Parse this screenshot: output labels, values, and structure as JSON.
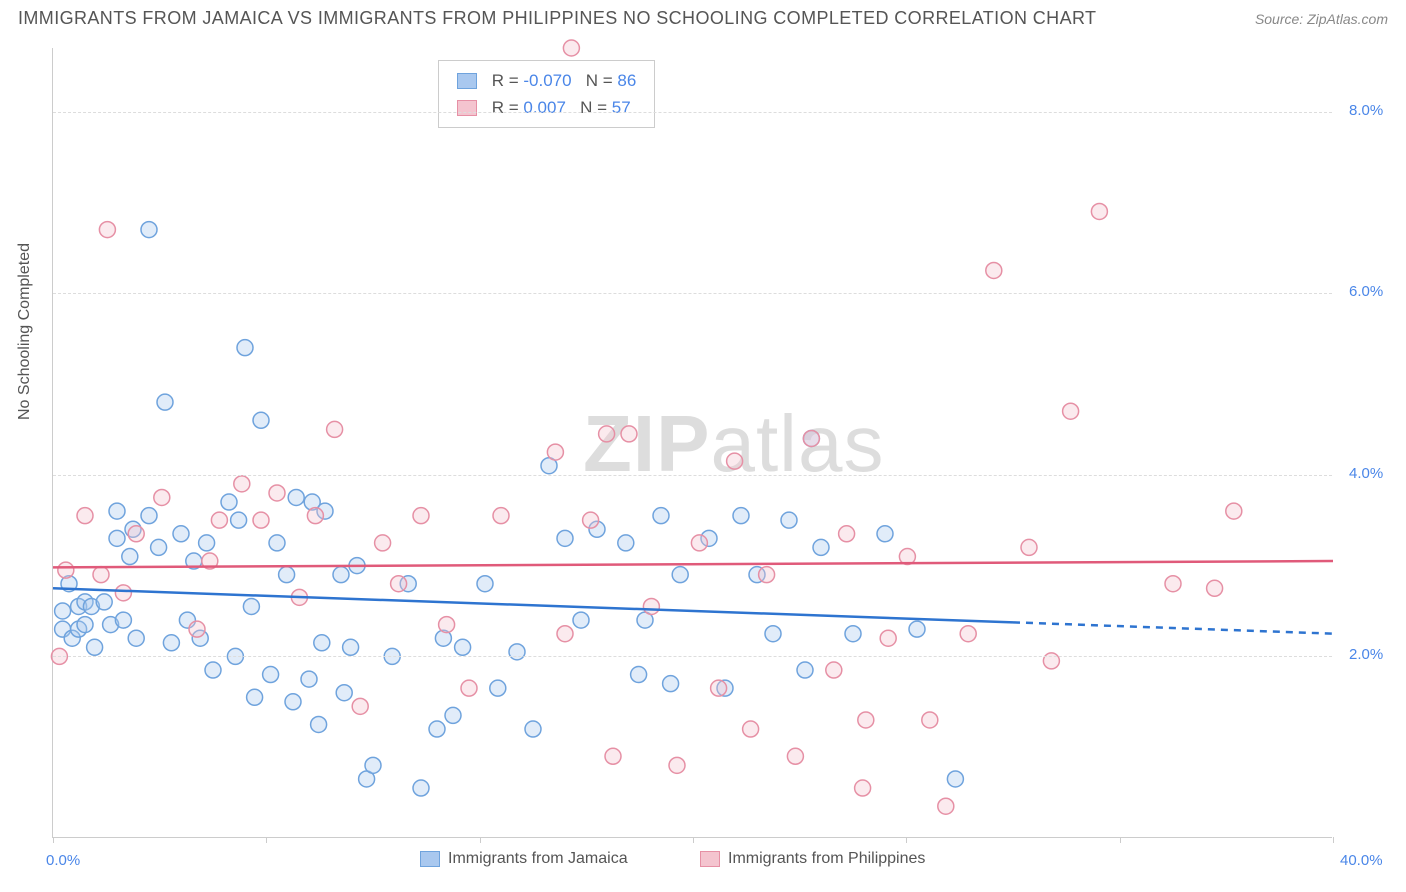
{
  "title": "IMMIGRANTS FROM JAMAICA VS IMMIGRANTS FROM PHILIPPINES NO SCHOOLING COMPLETED CORRELATION CHART",
  "source_label": "Source: ZipAtlas.com",
  "y_axis_label": "No Schooling Completed",
  "watermark": {
    "bold": "ZIP",
    "light": "atlas"
  },
  "chart": {
    "type": "scatter",
    "xlim": [
      0,
      40
    ],
    "ylim": [
      0,
      8.7
    ],
    "x_ticks": [
      0,
      6.67,
      13.33,
      20,
      26.67,
      33.33,
      40
    ],
    "x_tick_labels_shown": {
      "min": "0.0%",
      "max": "40.0%"
    },
    "y_ticks": [
      2,
      4,
      6,
      8
    ],
    "y_tick_labels": [
      "2.0%",
      "4.0%",
      "6.0%",
      "8.0%"
    ],
    "grid_color": "#dddddd",
    "background_color": "#ffffff",
    "axis_label_color": "#4a86e8",
    "marker_radius": 8,
    "marker_stroke_width": 1.5,
    "fill_opacity": 0.35,
    "series": [
      {
        "name": "Immigrants from Jamaica",
        "color_fill": "#a9c8ef",
        "color_stroke": "#6fa3dd",
        "trend_color": "#2e74d0",
        "trend": {
          "y_at_x0": 2.75,
          "y_at_x40": 2.25,
          "solid_until_x": 30
        },
        "stats": {
          "R": "-0.070",
          "N": "86"
        },
        "points": [
          [
            0.3,
            2.5
          ],
          [
            0.3,
            2.3
          ],
          [
            0.5,
            2.8
          ],
          [
            0.6,
            2.2
          ],
          [
            0.8,
            2.55
          ],
          [
            0.8,
            2.3
          ],
          [
            1.0,
            2.6
          ],
          [
            1.0,
            2.35
          ],
          [
            1.2,
            2.55
          ],
          [
            1.3,
            2.1
          ],
          [
            1.6,
            2.6
          ],
          [
            1.8,
            2.35
          ],
          [
            2.0,
            3.3
          ],
          [
            2.0,
            3.6
          ],
          [
            2.2,
            2.4
          ],
          [
            2.4,
            3.1
          ],
          [
            2.5,
            3.4
          ],
          [
            2.6,
            2.2
          ],
          [
            3.0,
            3.55
          ],
          [
            3.0,
            6.7
          ],
          [
            3.3,
            3.2
          ],
          [
            3.5,
            4.8
          ],
          [
            3.7,
            2.15
          ],
          [
            4.0,
            3.35
          ],
          [
            4.2,
            2.4
          ],
          [
            4.4,
            3.05
          ],
          [
            4.6,
            2.2
          ],
          [
            4.8,
            3.25
          ],
          [
            5.0,
            1.85
          ],
          [
            5.5,
            3.7
          ],
          [
            5.7,
            2.0
          ],
          [
            5.8,
            3.5
          ],
          [
            6.0,
            5.4
          ],
          [
            6.2,
            2.55
          ],
          [
            6.3,
            1.55
          ],
          [
            6.5,
            4.6
          ],
          [
            6.8,
            1.8
          ],
          [
            7.0,
            3.25
          ],
          [
            7.3,
            2.9
          ],
          [
            7.5,
            1.5
          ],
          [
            7.6,
            3.75
          ],
          [
            8.0,
            1.75
          ],
          [
            8.1,
            3.7
          ],
          [
            8.3,
            1.25
          ],
          [
            8.4,
            2.15
          ],
          [
            8.5,
            3.6
          ],
          [
            9.0,
            2.9
          ],
          [
            9.1,
            1.6
          ],
          [
            9.3,
            2.1
          ],
          [
            9.5,
            3.0
          ],
          [
            9.8,
            0.65
          ],
          [
            10.0,
            0.8
          ],
          [
            10.6,
            2.0
          ],
          [
            11.1,
            2.8
          ],
          [
            11.5,
            0.55
          ],
          [
            12.0,
            1.2
          ],
          [
            12.2,
            2.2
          ],
          [
            12.5,
            1.35
          ],
          [
            12.8,
            2.1
          ],
          [
            13.5,
            2.8
          ],
          [
            13.9,
            1.65
          ],
          [
            14.5,
            2.05
          ],
          [
            15.0,
            1.2
          ],
          [
            15.5,
            4.1
          ],
          [
            16.0,
            3.3
          ],
          [
            16.5,
            2.4
          ],
          [
            17.0,
            3.4
          ],
          [
            17.9,
            3.25
          ],
          [
            18.3,
            1.8
          ],
          [
            18.5,
            2.4
          ],
          [
            19.0,
            3.55
          ],
          [
            19.3,
            1.7
          ],
          [
            19.6,
            2.9
          ],
          [
            20.5,
            3.3
          ],
          [
            21.0,
            1.65
          ],
          [
            21.5,
            3.55
          ],
          [
            22.0,
            2.9
          ],
          [
            22.5,
            2.25
          ],
          [
            23.0,
            3.5
          ],
          [
            23.5,
            1.85
          ],
          [
            23.7,
            4.4
          ],
          [
            24.0,
            3.2
          ],
          [
            25.0,
            2.25
          ],
          [
            26.0,
            3.35
          ],
          [
            27.0,
            2.3
          ],
          [
            28.2,
            0.65
          ]
        ]
      },
      {
        "name": "Immigrants from Philippines",
        "color_fill": "#f4c4cf",
        "color_stroke": "#e690a5",
        "trend_color": "#e05a7a",
        "trend": {
          "y_at_x0": 2.98,
          "y_at_x40": 3.05,
          "solid_until_x": 40
        },
        "stats": {
          "R": " 0.007",
          "N": "57"
        },
        "points": [
          [
            0.2,
            2.0
          ],
          [
            0.4,
            2.95
          ],
          [
            1.0,
            3.55
          ],
          [
            1.5,
            2.9
          ],
          [
            1.7,
            6.7
          ],
          [
            2.2,
            2.7
          ],
          [
            2.6,
            3.35
          ],
          [
            3.4,
            3.75
          ],
          [
            4.5,
            2.3
          ],
          [
            4.9,
            3.05
          ],
          [
            5.2,
            3.5
          ],
          [
            5.9,
            3.9
          ],
          [
            6.5,
            3.5
          ],
          [
            7.0,
            3.8
          ],
          [
            7.7,
            2.65
          ],
          [
            8.2,
            3.55
          ],
          [
            8.8,
            4.5
          ],
          [
            9.6,
            1.45
          ],
          [
            10.3,
            3.25
          ],
          [
            10.8,
            2.8
          ],
          [
            11.5,
            3.55
          ],
          [
            12.3,
            2.35
          ],
          [
            13.0,
            1.65
          ],
          [
            14.0,
            3.55
          ],
          [
            15.7,
            4.25
          ],
          [
            16.0,
            2.25
          ],
          [
            16.2,
            8.7
          ],
          [
            16.8,
            3.5
          ],
          [
            17.3,
            4.45
          ],
          [
            17.5,
            0.9
          ],
          [
            18.0,
            4.45
          ],
          [
            18.7,
            2.55
          ],
          [
            19.5,
            0.8
          ],
          [
            20.2,
            3.25
          ],
          [
            20.8,
            1.65
          ],
          [
            21.3,
            4.15
          ],
          [
            21.8,
            1.2
          ],
          [
            22.3,
            2.9
          ],
          [
            23.2,
            0.9
          ],
          [
            24.4,
            1.85
          ],
          [
            24.8,
            3.35
          ],
          [
            25.3,
            0.55
          ],
          [
            25.4,
            1.3
          ],
          [
            26.1,
            2.2
          ],
          [
            26.7,
            3.1
          ],
          [
            27.4,
            1.3
          ],
          [
            28.6,
            2.25
          ],
          [
            29.4,
            6.25
          ],
          [
            30.5,
            3.2
          ],
          [
            31.2,
            1.95
          ],
          [
            31.8,
            4.7
          ],
          [
            32.7,
            6.9
          ],
          [
            35.0,
            2.8
          ],
          [
            36.3,
            2.75
          ],
          [
            36.9,
            3.6
          ],
          [
            27.9,
            0.35
          ],
          [
            23.7,
            4.4
          ]
        ]
      }
    ]
  },
  "legend": {
    "series1": "Immigrants from Jamaica",
    "series2": "Immigrants from Philippines"
  }
}
